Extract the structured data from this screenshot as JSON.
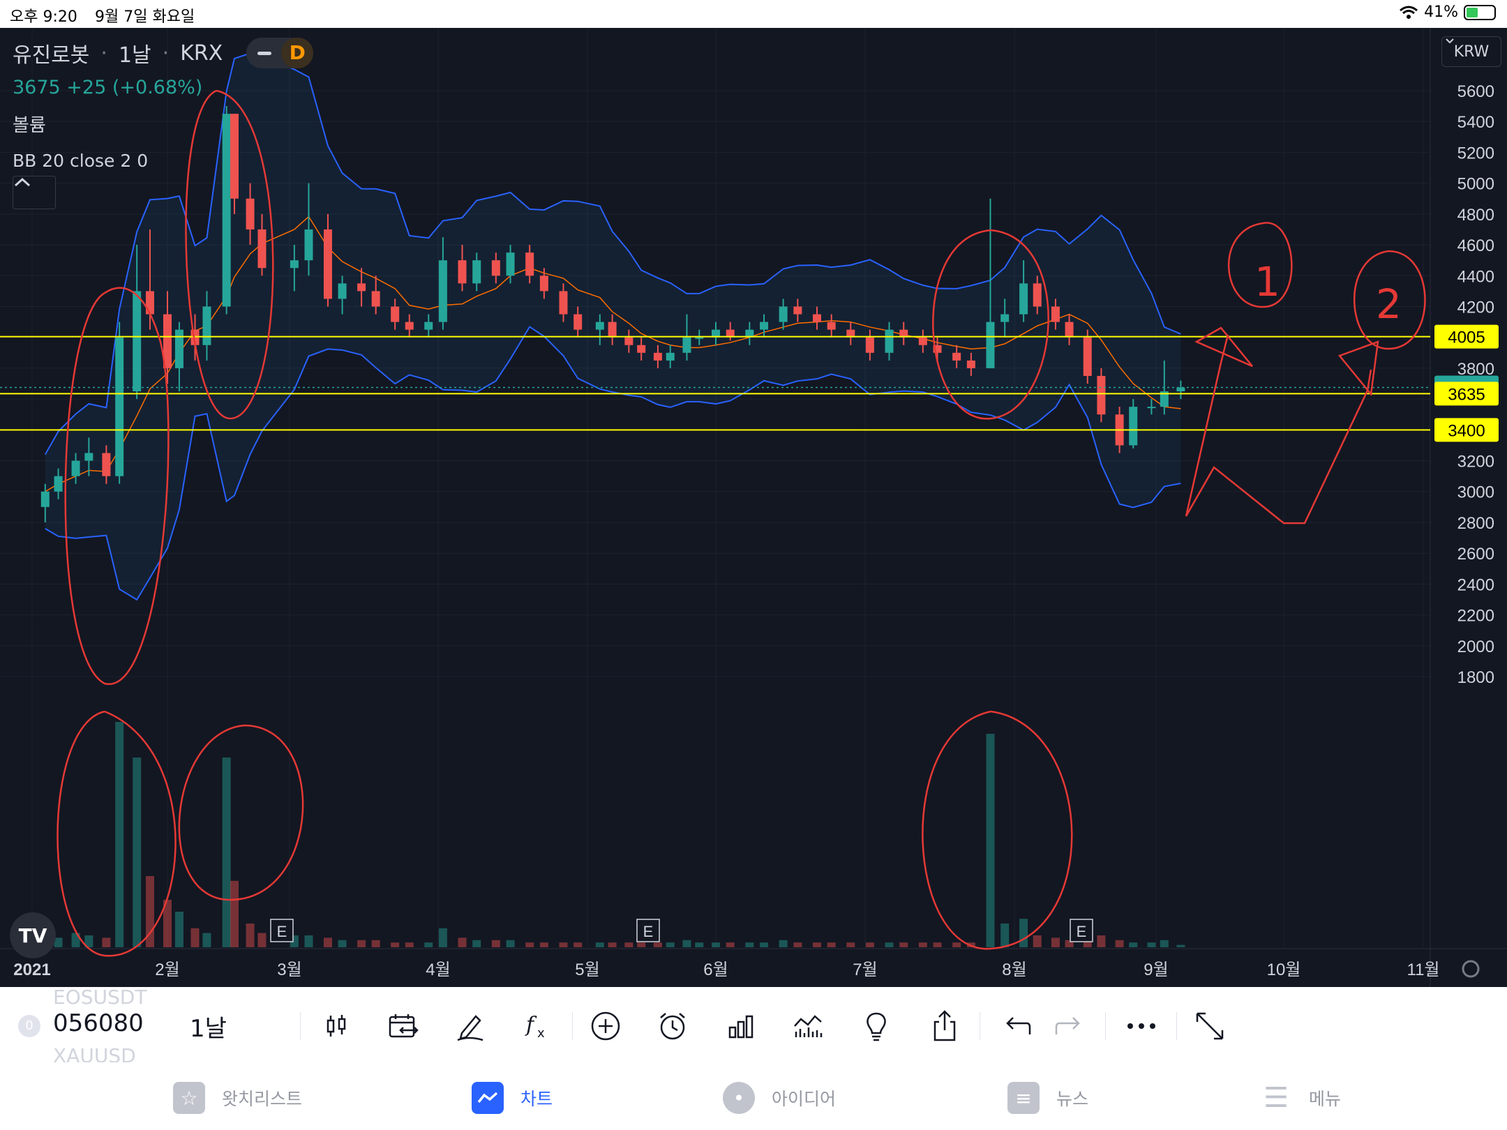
{
  "status_bar": {
    "time": "오후 9:20",
    "date": "9월 7일 화요일",
    "battery": "41%"
  },
  "legend": {
    "symbol": "유진로봇",
    "interval": "1날",
    "exchange": "KRX",
    "badge": "D",
    "price_line": "3675  +25 (+0.68%)",
    "volume_label": "볼륨",
    "indicator": "BB 20 close 2 0"
  },
  "currency_button": "KRW",
  "price_axis": [
    "5600",
    "5400",
    "5200",
    "5000",
    "4800",
    "4600",
    "4400",
    "4200",
    "4000",
    "3800",
    "3600",
    "3400",
    "3200",
    "3000",
    "2800",
    "2600",
    "2400",
    "2200",
    "2000",
    "1800"
  ],
  "price_labels": [
    {
      "value": "4005",
      "color": "#ffff00"
    },
    {
      "value": "3675",
      "color": "#26a69a"
    },
    {
      "value": "3635",
      "color": "#ffff00"
    },
    {
      "value": "3400",
      "color": "#ffff00"
    }
  ],
  "time_axis": [
    "2021",
    "2월",
    "3월",
    "4월",
    "5월",
    "6월",
    "7월",
    "8월",
    "9월",
    "10월",
    "11월"
  ],
  "earnings_marker": "E",
  "annotations": [
    "1",
    "2"
  ],
  "logo": "TV",
  "toolbar": {
    "symbol_badge": "0",
    "symbol": "056080",
    "ghost_top": "EOSUSDT",
    "ghost_bottom": "XAUUSD",
    "interval": "1날",
    "icons": [
      "candles-icon",
      "replay-calendar-icon",
      "draw-icon",
      "indicators-icon",
      "add-icon",
      "alert-icon",
      "bar-chart-icon",
      "volume-chart-icon",
      "ideas-bulb-icon",
      "share-icon",
      "undo-icon",
      "redo-icon",
      "more-icon",
      "fullscreen-icon"
    ]
  },
  "tabs": [
    {
      "label": "왓치리스트",
      "icon": "star-icon",
      "active": false
    },
    {
      "label": "차트",
      "icon": "chart-icon",
      "active": true
    },
    {
      "label": "아이디어",
      "icon": "bulb-icon",
      "active": false
    },
    {
      "label": "뉴스",
      "icon": "news-icon",
      "active": false
    },
    {
      "label": "메뉴",
      "icon": "menu-icon",
      "active": false
    }
  ],
  "chart_data": {
    "type": "candlestick",
    "symbol": "056080",
    "currency": "KRW",
    "last_close": 3675,
    "change": "+25 (+0.68%)",
    "ylim": [
      1800,
      5600
    ],
    "horizontal_lines": [
      4005,
      3635,
      3400
    ],
    "x_months": [
      "2021-01",
      "2021-02",
      "2021-03",
      "2021-04",
      "2021-05",
      "2021-06",
      "2021-07",
      "2021-08",
      "2021-09",
      "2021-10",
      "2021-11"
    ],
    "candles": [
      {
        "t": "01-04",
        "o": 2900,
        "h": 3050,
        "l": 2800,
        "c": 3000
      },
      {
        "t": "01-07",
        "o": 3000,
        "h": 3150,
        "l": 2950,
        "c": 3100
      },
      {
        "t": "01-11",
        "o": 3100,
        "h": 3250,
        "l": 3050,
        "c": 3200
      },
      {
        "t": "01-14",
        "o": 3200,
        "h": 3350,
        "l": 3100,
        "c": 3250
      },
      {
        "t": "01-18",
        "o": 3250,
        "h": 3300,
        "l": 3050,
        "c": 3100
      },
      {
        "t": "01-21",
        "o": 3100,
        "h": 4100,
        "l": 3050,
        "c": 4000
      },
      {
        "t": "01-25",
        "o": 3650,
        "h": 4600,
        "l": 3600,
        "c": 4300
      },
      {
        "t": "01-28",
        "o": 4300,
        "h": 4700,
        "l": 4050,
        "c": 4150
      },
      {
        "t": "02-01",
        "o": 4150,
        "h": 4300,
        "l": 3700,
        "c": 3800
      },
      {
        "t": "02-04",
        "o": 3800,
        "h": 4100,
        "l": 3650,
        "c": 4050
      },
      {
        "t": "02-08",
        "o": 4050,
        "h": 4150,
        "l": 3850,
        "c": 3950
      },
      {
        "t": "02-11",
        "o": 3950,
        "h": 4300,
        "l": 3850,
        "c": 4200
      },
      {
        "t": "02-16",
        "o": 4200,
        "h": 5500,
        "l": 4150,
        "c": 5450
      },
      {
        "t": "02-18",
        "o": 5450,
        "h": 5450,
        "l": 4800,
        "c": 4900
      },
      {
        "t": "02-22",
        "o": 4900,
        "h": 5000,
        "l": 4600,
        "c": 4700
      },
      {
        "t": "02-25",
        "o": 4700,
        "h": 4800,
        "l": 4400,
        "c": 4450
      },
      {
        "t": "03-02",
        "o": 4450,
        "h": 4600,
        "l": 4300,
        "c": 4500
      },
      {
        "t": "03-05",
        "o": 4500,
        "h": 5000,
        "l": 4400,
        "c": 4700
      },
      {
        "t": "03-09",
        "o": 4700,
        "h": 4800,
        "l": 4200,
        "c": 4250
      },
      {
        "t": "03-12",
        "o": 4250,
        "h": 4400,
        "l": 4150,
        "c": 4350
      },
      {
        "t": "03-16",
        "o": 4350,
        "h": 4450,
        "l": 4200,
        "c": 4300
      },
      {
        "t": "03-19",
        "o": 4300,
        "h": 4400,
        "l": 4150,
        "c": 4200
      },
      {
        "t": "03-23",
        "o": 4200,
        "h": 4250,
        "l": 4050,
        "c": 4100
      },
      {
        "t": "03-26",
        "o": 4100,
        "h": 4150,
        "l": 4000,
        "c": 4050
      },
      {
        "t": "03-30",
        "o": 4050,
        "h": 4150,
        "l": 4000,
        "c": 4100
      },
      {
        "t": "04-02",
        "o": 4100,
        "h": 4650,
        "l": 4050,
        "c": 4500
      },
      {
        "t": "04-06",
        "o": 4500,
        "h": 4600,
        "l": 4300,
        "c": 4350
      },
      {
        "t": "04-09",
        "o": 4350,
        "h": 4550,
        "l": 4300,
        "c": 4500
      },
      {
        "t": "04-13",
        "o": 4500,
        "h": 4550,
        "l": 4350,
        "c": 4400
      },
      {
        "t": "04-16",
        "o": 4400,
        "h": 4600,
        "l": 4350,
        "c": 4550
      },
      {
        "t": "04-20",
        "o": 4550,
        "h": 4600,
        "l": 4350,
        "c": 4400
      },
      {
        "t": "04-23",
        "o": 4400,
        "h": 4450,
        "l": 4250,
        "c": 4300
      },
      {
        "t": "04-27",
        "o": 4300,
        "h": 4350,
        "l": 4100,
        "c": 4150
      },
      {
        "t": "04-30",
        "o": 4150,
        "h": 4200,
        "l": 4000,
        "c": 4050
      },
      {
        "t": "05-04",
        "o": 4050,
        "h": 4150,
        "l": 3950,
        "c": 4100
      },
      {
        "t": "05-07",
        "o": 4100,
        "h": 4150,
        "l": 3950,
        "c": 4000
      },
      {
        "t": "05-11",
        "o": 4000,
        "h": 4050,
        "l": 3900,
        "c": 3950
      },
      {
        "t": "05-14",
        "o": 3950,
        "h": 4000,
        "l": 3850,
        "c": 3900
      },
      {
        "t": "05-18",
        "o": 3900,
        "h": 3950,
        "l": 3800,
        "c": 3850
      },
      {
        "t": "05-21",
        "o": 3850,
        "h": 3950,
        "l": 3800,
        "c": 3900
      },
      {
        "t": "05-25",
        "o": 3900,
        "h": 4150,
        "l": 3850,
        "c": 4000
      },
      {
        "t": "05-28",
        "o": 4000,
        "h": 4050,
        "l": 3950,
        "c": 4000
      },
      {
        "t": "06-01",
        "o": 4000,
        "h": 4100,
        "l": 3950,
        "c": 4050
      },
      {
        "t": "06-04",
        "o": 4050,
        "h": 4100,
        "l": 3980,
        "c": 4000
      },
      {
        "t": "06-08",
        "o": 4000,
        "h": 4100,
        "l": 3950,
        "c": 4050
      },
      {
        "t": "06-11",
        "o": 4050,
        "h": 4150,
        "l": 4000,
        "c": 4100
      },
      {
        "t": "06-15",
        "o": 4100,
        "h": 4250,
        "l": 4050,
        "c": 4200
      },
      {
        "t": "06-18",
        "o": 4200,
        "h": 4250,
        "l": 4100,
        "c": 4150
      },
      {
        "t": "06-22",
        "o": 4150,
        "h": 4200,
        "l": 4050,
        "c": 4100
      },
      {
        "t": "06-25",
        "o": 4100,
        "h": 4150,
        "l": 4000,
        "c": 4050
      },
      {
        "t": "06-29",
        "o": 4050,
        "h": 4100,
        "l": 3950,
        "c": 4000
      },
      {
        "t": "07-02",
        "o": 4000,
        "h": 4050,
        "l": 3850,
        "c": 3900
      },
      {
        "t": "07-06",
        "o": 3900,
        "h": 4100,
        "l": 3850,
        "c": 4050
      },
      {
        "t": "07-09",
        "o": 4050,
        "h": 4100,
        "l": 3950,
        "c": 4000
      },
      {
        "t": "07-13",
        "o": 4000,
        "h": 4050,
        "l": 3900,
        "c": 3950
      },
      {
        "t": "07-16",
        "o": 3950,
        "h": 4000,
        "l": 3850,
        "c": 3900
      },
      {
        "t": "07-20",
        "o": 3900,
        "h": 3950,
        "l": 3800,
        "c": 3850
      },
      {
        "t": "07-23",
        "o": 3850,
        "h": 3900,
        "l": 3750,
        "c": 3800
      },
      {
        "t": "07-27",
        "o": 3800,
        "h": 4900,
        "l": 3800,
        "c": 4100
      },
      {
        "t": "07-30",
        "o": 4100,
        "h": 4250,
        "l": 4000,
        "c": 4150
      },
      {
        "t": "08-03",
        "o": 4150,
        "h": 4500,
        "l": 4100,
        "c": 4350
      },
      {
        "t": "08-06",
        "o": 4350,
        "h": 4400,
        "l": 4150,
        "c": 4200
      },
      {
        "t": "08-10",
        "o": 4200,
        "h": 4250,
        "l": 4050,
        "c": 4100
      },
      {
        "t": "08-13",
        "o": 4100,
        "h": 4150,
        "l": 3950,
        "c": 4000
      },
      {
        "t": "08-17",
        "o": 4000,
        "h": 4050,
        "l": 3700,
        "c": 3750
      },
      {
        "t": "08-20",
        "o": 3750,
        "h": 3800,
        "l": 3450,
        "c": 3500
      },
      {
        "t": "08-24",
        "o": 3500,
        "h": 3550,
        "l": 3250,
        "c": 3300
      },
      {
        "t": "08-27",
        "o": 3300,
        "h": 3600,
        "l": 3280,
        "c": 3550
      },
      {
        "t": "08-31",
        "o": 3550,
        "h": 3600,
        "l": 3500,
        "c": 3550
      },
      {
        "t": "09-03",
        "o": 3550,
        "h": 3850,
        "l": 3500,
        "c": 3650
      },
      {
        "t": "09-07",
        "o": 3650,
        "h": 3720,
        "l": 3600,
        "c": 3675
      }
    ],
    "volume": [
      {
        "t": "01-04",
        "v": 0.05
      },
      {
        "t": "01-07",
        "v": 0.04
      },
      {
        "t": "01-11",
        "v": 0.06
      },
      {
        "t": "01-14",
        "v": 0.05
      },
      {
        "t": "01-18",
        "v": 0.04
      },
      {
        "t": "01-21",
        "v": 0.95
      },
      {
        "t": "01-25",
        "v": 0.8
      },
      {
        "t": "01-28",
        "v": 0.3
      },
      {
        "t": "02-01",
        "v": 0.2
      },
      {
        "t": "02-04",
        "v": 0.15
      },
      {
        "t": "02-08",
        "v": 0.08
      },
      {
        "t": "02-11",
        "v": 0.06
      },
      {
        "t": "02-16",
        "v": 0.8
      },
      {
        "t": "02-18",
        "v": 0.28
      },
      {
        "t": "02-22",
        "v": 0.1
      },
      {
        "t": "02-25",
        "v": 0.06
      },
      {
        "t": "03-02",
        "v": 0.05
      },
      {
        "t": "03-05",
        "v": 0.05
      },
      {
        "t": "03-09",
        "v": 0.04
      },
      {
        "t": "03-12",
        "v": 0.03
      },
      {
        "t": "03-16",
        "v": 0.03
      },
      {
        "t": "03-19",
        "v": 0.03
      },
      {
        "t": "03-23",
        "v": 0.02
      },
      {
        "t": "03-26",
        "v": 0.02
      },
      {
        "t": "03-30",
        "v": 0.02
      },
      {
        "t": "04-02",
        "v": 0.08
      },
      {
        "t": "04-06",
        "v": 0.04
      },
      {
        "t": "04-09",
        "v": 0.03
      },
      {
        "t": "04-13",
        "v": 0.03
      },
      {
        "t": "04-16",
        "v": 0.03
      },
      {
        "t": "04-20",
        "v": 0.02
      },
      {
        "t": "04-23",
        "v": 0.02
      },
      {
        "t": "04-27",
        "v": 0.02
      },
      {
        "t": "04-30",
        "v": 0.02
      },
      {
        "t": "05-04",
        "v": 0.02
      },
      {
        "t": "05-07",
        "v": 0.02
      },
      {
        "t": "05-11",
        "v": 0.02
      },
      {
        "t": "05-14",
        "v": 0.02
      },
      {
        "t": "05-18",
        "v": 0.02
      },
      {
        "t": "05-21",
        "v": 0.02
      },
      {
        "t": "05-25",
        "v": 0.03
      },
      {
        "t": "05-28",
        "v": 0.02
      },
      {
        "t": "06-01",
        "v": 0.02
      },
      {
        "t": "06-04",
        "v": 0.02
      },
      {
        "t": "06-08",
        "v": 0.02
      },
      {
        "t": "06-11",
        "v": 0.02
      },
      {
        "t": "06-15",
        "v": 0.03
      },
      {
        "t": "06-18",
        "v": 0.02
      },
      {
        "t": "06-22",
        "v": 0.02
      },
      {
        "t": "06-25",
        "v": 0.02
      },
      {
        "t": "06-29",
        "v": 0.02
      },
      {
        "t": "07-02",
        "v": 0.02
      },
      {
        "t": "07-06",
        "v": 0.02
      },
      {
        "t": "07-09",
        "v": 0.02
      },
      {
        "t": "07-13",
        "v": 0.02
      },
      {
        "t": "07-16",
        "v": 0.02
      },
      {
        "t": "07-20",
        "v": 0.02
      },
      {
        "t": "07-23",
        "v": 0.02
      },
      {
        "t": "07-27",
        "v": 0.9
      },
      {
        "t": "07-30",
        "v": 0.1
      },
      {
        "t": "08-03",
        "v": 0.12
      },
      {
        "t": "08-06",
        "v": 0.05
      },
      {
        "t": "08-10",
        "v": 0.04
      },
      {
        "t": "08-13",
        "v": 0.03
      },
      {
        "t": "08-17",
        "v": 0.04
      },
      {
        "t": "08-20",
        "v": 0.05
      },
      {
        "t": "08-24",
        "v": 0.03
      },
      {
        "t": "08-27",
        "v": 0.02
      },
      {
        "t": "08-31",
        "v": 0.02
      },
      {
        "t": "09-03",
        "v": 0.03
      },
      {
        "t": "09-07",
        "v": 0.01
      }
    ],
    "volume_unit": "relative (0-1)",
    "bollinger": {
      "period": 20,
      "source": "close",
      "stddev": 2,
      "offset": 0
    }
  }
}
